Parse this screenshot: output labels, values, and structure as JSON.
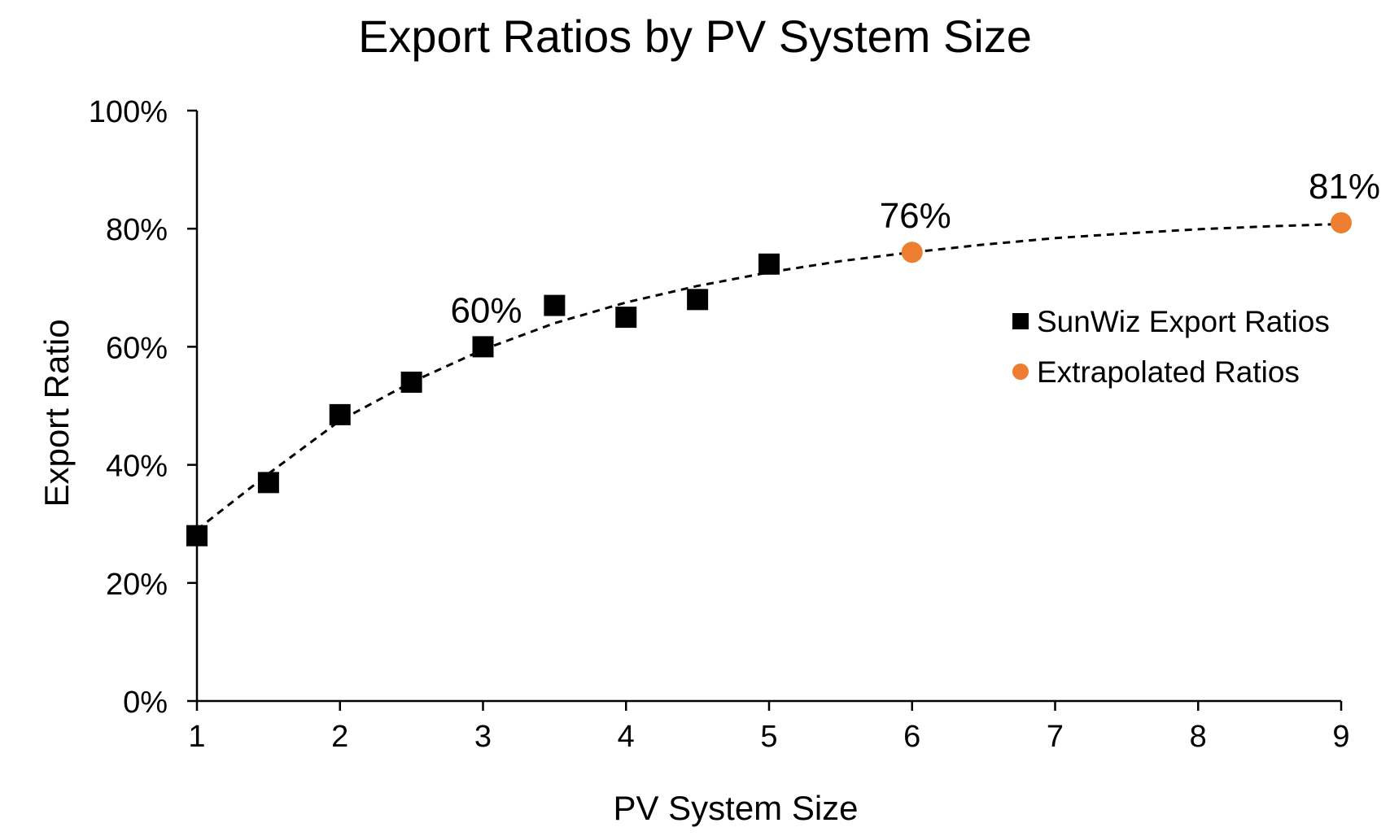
{
  "chart_data": {
    "type": "scatter",
    "title": "Export Ratios by PV System Size",
    "xlabel": "PV System Size",
    "ylabel": "Export Ratio",
    "xlim": [
      1,
      9
    ],
    "ylim": [
      0,
      100
    ],
    "x_ticks": [
      "1",
      "2",
      "3",
      "4",
      "5",
      "6",
      "7",
      "8",
      "9"
    ],
    "y_ticks": [
      "0%",
      "20%",
      "40%",
      "60%",
      "80%",
      "100%"
    ],
    "grid": false,
    "legend_position": "right",
    "series": [
      {
        "name": "SunWiz Export Ratios",
        "marker": "square",
        "color": "#000000",
        "x": [
          1,
          1.5,
          2,
          2.5,
          3,
          3.5,
          4,
          4.5,
          5
        ],
        "y": [
          28,
          37,
          48.5,
          54,
          60,
          67,
          65,
          68,
          74
        ]
      },
      {
        "name": "Extrapolated Ratios",
        "marker": "circle",
        "color": "#ED7D31",
        "x": [
          6,
          9
        ],
        "y": [
          76,
          81
        ]
      }
    ],
    "trendline": {
      "style": "dashed",
      "color": "#000000",
      "x": [
        1,
        1.5,
        2,
        2.5,
        3,
        3.5,
        4,
        4.5,
        5,
        5.5,
        6,
        6.5,
        7,
        7.5,
        8,
        8.5,
        9
      ],
      "y": [
        29,
        38.5,
        47.5,
        54,
        59.5,
        64,
        67.5,
        70.3,
        72.6,
        74.5,
        76,
        77.3,
        78.4,
        79.2,
        79.9,
        80.4,
        80.8
      ]
    },
    "annotations": [
      {
        "text": "60%",
        "x": 3,
        "y": 60
      },
      {
        "text": "76%",
        "x": 6,
        "y": 76
      },
      {
        "text": "81%",
        "x": 9,
        "y": 81
      }
    ]
  }
}
